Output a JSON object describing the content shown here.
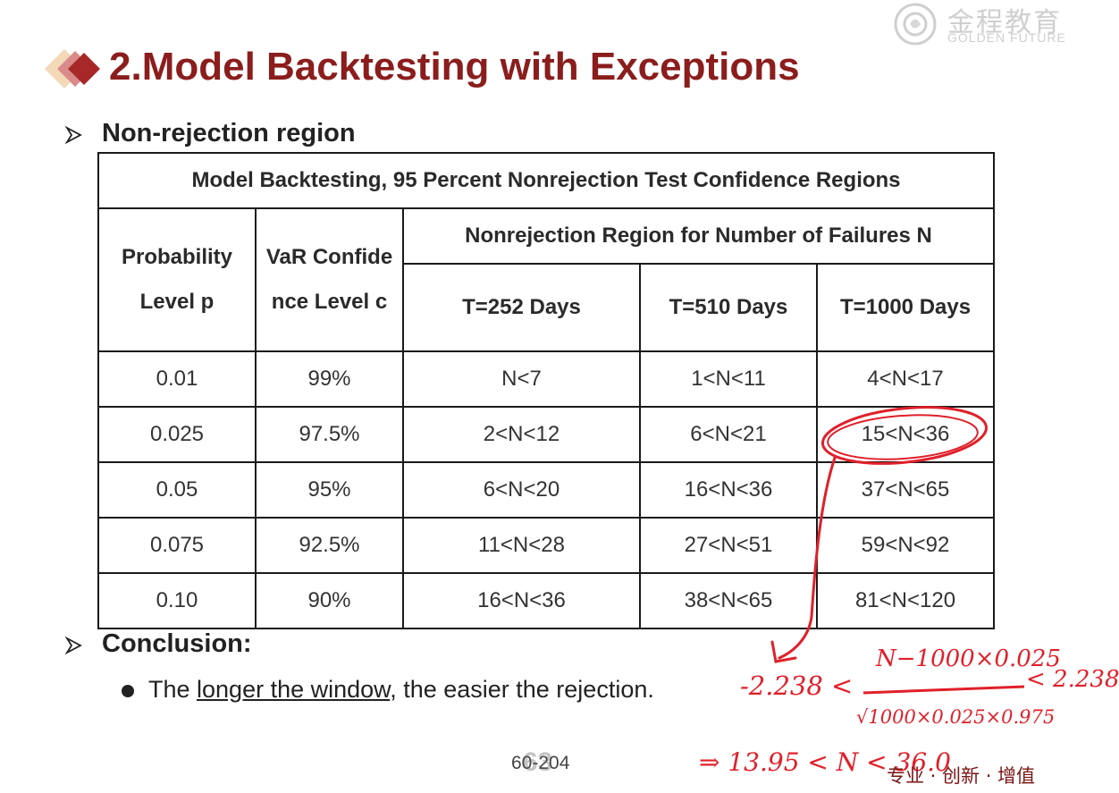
{
  "logo": {
    "cn": "金程教育",
    "en": "GOLDEN FUTURE"
  },
  "title": "2.Model Backtesting with Exceptions",
  "section1": "Non-rejection region",
  "table": {
    "caption": "Model Backtesting, 95 Percent Nonrejection Test  Confidence Regions",
    "col_prob": "Probability Level p",
    "col_var": "VaR Confidence Level c",
    "col_region": "Nonrejection Region for Number of Failures N",
    "col_t252": "T=252 Days",
    "col_t510": "T=510 Days",
    "col_t1000": "T=1000 Days",
    "rows": [
      {
        "p": "0.01",
        "c": "99%",
        "t252": "N<7",
        "t510": "1<N<11",
        "t1000": "4<N<17"
      },
      {
        "p": "0.025",
        "c": "97.5%",
        "t252": "2<N<12",
        "t510": "6<N<21",
        "t1000": "15<N<36"
      },
      {
        "p": "0.05",
        "c": "95%",
        "t252": "6<N<20",
        "t510": "16<N<36",
        "t1000": "37<N<65"
      },
      {
        "p": "0.075",
        "c": "92.5%",
        "t252": "11<N<28",
        "t510": "27<N<51",
        "t1000": "59<N<92"
      },
      {
        "p": "0.10",
        "c": "90%",
        "t252": "16<N<36",
        "t510": "38<N<65",
        "t1000": "81<N<120"
      }
    ]
  },
  "section2": "Conclusion:",
  "conclusion": {
    "pre": "The ",
    "underlined": "longer the window",
    "post": ", the easier the rejection."
  },
  "page": "60-204",
  "page_overlay": "63",
  "footer": "专业 · 创新 · 增值",
  "annotation": {
    "left": "-2.238 <",
    "numerator": "N−1000×0.025",
    "right": "< 2.238",
    "denominator": "√1000×0.025×0.975",
    "result": "⇒ 13.95 < N < 36.0"
  },
  "colors": {
    "title": "#8b1d1d",
    "ink": "#e0202a"
  }
}
